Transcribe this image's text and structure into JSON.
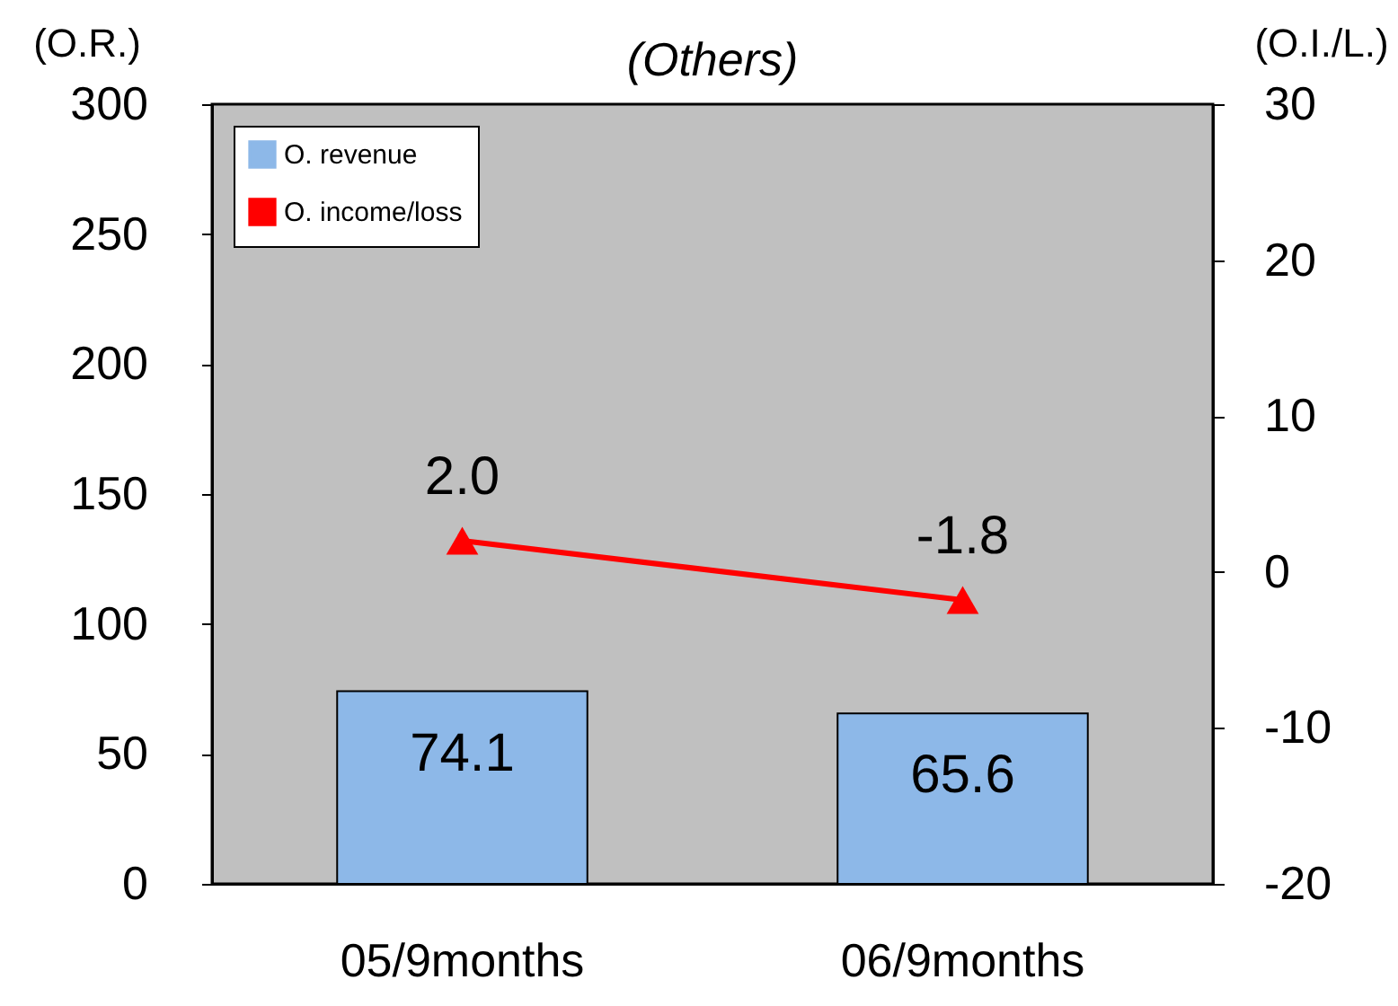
{
  "chart_data": {
    "type": "bar",
    "title": "(Others)",
    "ylabel": "(O.R.)",
    "y2label": "(O.I./L.)",
    "categories": [
      "05/9months",
      "06/9months"
    ],
    "series": [
      {
        "name": "O. revenue",
        "color": "#8db8e8",
        "values": [
          74.1,
          65.6
        ],
        "value_labels": [
          "74.1",
          "65.6"
        ]
      },
      {
        "name": "O. income/loss",
        "type": "line",
        "axis": "y2",
        "color": "#ff0000",
        "values": [
          2.0,
          -1.8
        ],
        "value_labels": [
          "2.0",
          "-1.8"
        ]
      }
    ],
    "ylim": [
      0,
      300
    ],
    "yticks": [
      0,
      50,
      100,
      150,
      200,
      250,
      300
    ],
    "y2lim": [
      -20,
      30
    ],
    "y2ticks": [
      -20,
      -10,
      0,
      10,
      20,
      30
    ],
    "legend": "top left",
    "marker": "triangle",
    "grid": false
  }
}
